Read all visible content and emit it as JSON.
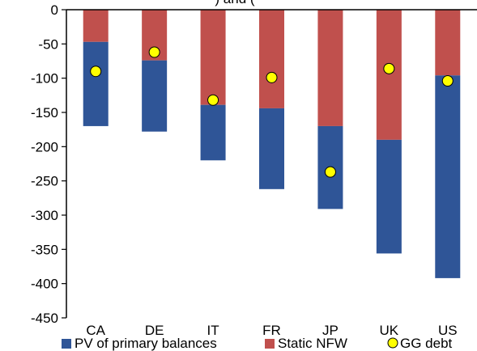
{
  "chart_data": {
    "type": "bar",
    "stacked": true,
    "title_fragment": ") and (",
    "categories": [
      "CA",
      "DE",
      "IT",
      "FR",
      "JP",
      "UK",
      "US"
    ],
    "series": [
      {
        "name": "PV of primary balances",
        "kind": "bar",
        "color": "#2f5597",
        "values": [
          -123,
          -104,
          -81,
          -118,
          -121,
          -166,
          -296
        ]
      },
      {
        "name": "Static NFW",
        "kind": "bar",
        "color": "#c0504d",
        "values": [
          -47,
          -74,
          -139,
          -144,
          -170,
          -190,
          -96
        ]
      },
      {
        "name": "GG debt",
        "kind": "marker",
        "color": "#ffff00",
        "values": [
          -90,
          -62,
          -132,
          -99,
          -237,
          -86,
          -104
        ]
      }
    ],
    "y_ticks": [
      0,
      -50,
      -100,
      -150,
      -200,
      -250,
      -300,
      -350,
      -400,
      -450
    ],
    "ylim": [
      -450,
      0
    ],
    "grid": false,
    "legend_position": "bottom"
  }
}
